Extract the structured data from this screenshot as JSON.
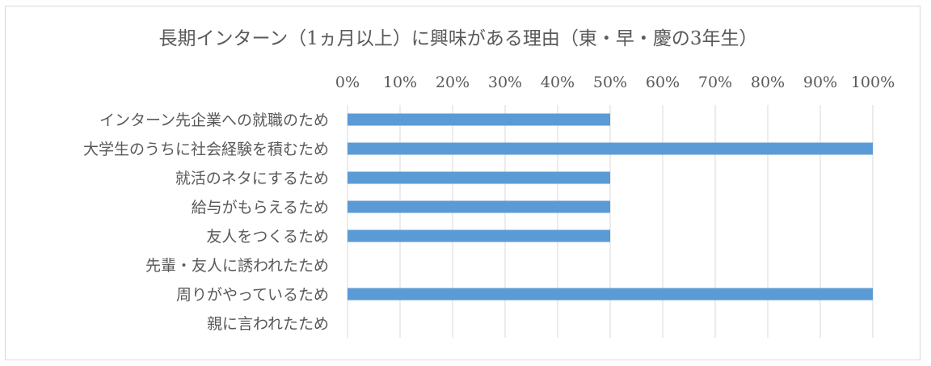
{
  "chart_data": {
    "type": "bar",
    "orientation": "horizontal",
    "title": "長期インターン（1ヵ月以上）に興味がある理由（東・早・慶の3年生）",
    "xlabel": "",
    "ylabel": "",
    "xlim": [
      0,
      100
    ],
    "x_ticks": [
      "0%",
      "10%",
      "20%",
      "30%",
      "40%",
      "50%",
      "60%",
      "70%",
      "80%",
      "90%",
      "100%"
    ],
    "x_axis_position": "top",
    "grid": true,
    "categories": [
      "インターン先企業への就職のため",
      "大学生のうちに社会経験を積むため",
      "就活のネタにするため",
      "給与がもらえるため",
      "友人をつくるため",
      "先輩・友人に誘われたため",
      "周りがやっているため",
      "親に言われたため"
    ],
    "values": [
      50,
      100,
      50,
      50,
      50,
      0,
      100,
      0
    ],
    "unit": "%",
    "bar_color": "#5b9bd5"
  }
}
